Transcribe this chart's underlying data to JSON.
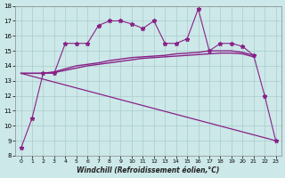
{
  "xlabel": "Windchill (Refroidissement éolien,°C)",
  "bg_color": "#cce8e8",
  "grid_color": "#aacccc",
  "line_color": "#882288",
  "xlim": [
    -0.5,
    23.5
  ],
  "ylim": [
    8,
    18
  ],
  "xticks": [
    0,
    1,
    2,
    3,
    4,
    5,
    6,
    7,
    8,
    9,
    10,
    11,
    12,
    13,
    14,
    15,
    16,
    17,
    18,
    19,
    20,
    21,
    22,
    23
  ],
  "yticks": [
    8,
    9,
    10,
    11,
    12,
    13,
    14,
    15,
    16,
    17,
    18
  ],
  "line1_x": [
    0,
    1,
    2,
    3,
    4,
    5,
    6,
    7,
    8,
    9,
    10,
    11,
    12,
    13,
    14,
    15,
    16,
    17,
    18,
    19,
    20,
    21,
    22,
    23
  ],
  "line1_y": [
    8.5,
    10.5,
    13.5,
    13.5,
    15.5,
    15.5,
    15.5,
    16.7,
    17.0,
    17.0,
    16.8,
    16.5,
    17.0,
    15.5,
    15.5,
    15.8,
    17.8,
    15.0,
    15.5,
    15.5,
    15.3,
    14.7,
    12.0,
    9.0
  ],
  "line2_x": [
    0,
    1,
    2,
    3,
    4,
    5,
    6,
    7,
    8,
    9,
    10,
    11,
    12,
    13,
    14,
    15,
    16,
    17,
    18,
    19,
    20,
    21
  ],
  "line2_y": [
    13.5,
    13.5,
    13.5,
    13.6,
    13.8,
    14.0,
    14.1,
    14.2,
    14.35,
    14.45,
    14.55,
    14.6,
    14.65,
    14.7,
    14.8,
    14.85,
    14.9,
    15.0,
    15.0,
    15.0,
    14.9,
    14.7
  ],
  "line3_x": [
    0,
    1,
    2,
    3,
    4,
    5,
    6,
    7,
    8,
    9,
    10,
    11,
    12,
    13,
    14,
    15,
    16,
    17,
    18,
    19,
    20,
    21
  ],
  "line3_y": [
    13.5,
    13.5,
    13.5,
    13.55,
    13.7,
    13.85,
    14.0,
    14.1,
    14.2,
    14.3,
    14.4,
    14.5,
    14.55,
    14.6,
    14.65,
    14.7,
    14.75,
    14.8,
    14.85,
    14.85,
    14.8,
    14.6
  ],
  "line4_x": [
    0,
    23
  ],
  "line4_y": [
    13.5,
    9.0
  ]
}
